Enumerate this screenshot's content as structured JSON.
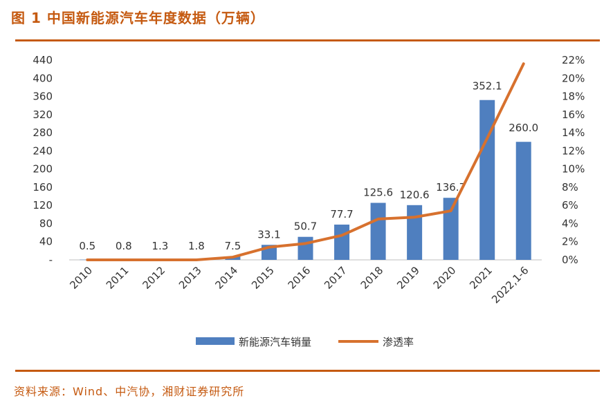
{
  "header": {
    "title": "图 1  中国新能源汽车年度数据（万辆）"
  },
  "footer": {
    "source": "资料来源：Wind、中汽协，湘财证券研究所"
  },
  "colors": {
    "accent": "#c55a11",
    "bar": "#4f7fbf",
    "line": "#d7712e"
  },
  "chart_data": {
    "type": "bar",
    "title": "中国新能源汽车年度数据（万辆）",
    "categories": [
      "2010",
      "2011",
      "2012",
      "2013",
      "2014",
      "2015",
      "2016",
      "2017",
      "2018",
      "2019",
      "2020",
      "2021",
      "2022,1-6"
    ],
    "series": [
      {
        "name": "新能源汽车销量",
        "type": "bar",
        "axis": "left",
        "values": [
          0.5,
          0.8,
          1.3,
          1.8,
          7.5,
          33.1,
          50.7,
          77.7,
          125.6,
          120.6,
          136.7,
          352.1,
          260.0
        ],
        "labels": [
          "0.5",
          "0.8",
          "1.3",
          "1.8",
          "7.5",
          "33.1",
          "50.7",
          "77.7",
          "125.6",
          "120.6",
          "136.7",
          "352.1",
          "260.0"
        ]
      },
      {
        "name": "渗透率",
        "type": "line",
        "axis": "right",
        "values": [
          0.0,
          0.0,
          0.0,
          0.0,
          0.3,
          1.4,
          1.8,
          2.7,
          4.5,
          4.7,
          5.4,
          13.4,
          21.6
        ]
      }
    ],
    "y_left": {
      "min": 0,
      "max": 440,
      "step": 40,
      "tick_labels": [
        "-",
        "40",
        "80",
        "120",
        "160",
        "200",
        "240",
        "280",
        "320",
        "360",
        "400",
        "440"
      ]
    },
    "y_right": {
      "min": 0,
      "max": 22,
      "step": 2,
      "tick_labels": [
        "0%",
        "2%",
        "4%",
        "6%",
        "8%",
        "10%",
        "12%",
        "14%",
        "16%",
        "18%",
        "20%",
        "22%"
      ]
    },
    "legend": {
      "position": "bottom",
      "entries": [
        "新能源汽车销量",
        "渗透率"
      ]
    },
    "grid": false
  }
}
